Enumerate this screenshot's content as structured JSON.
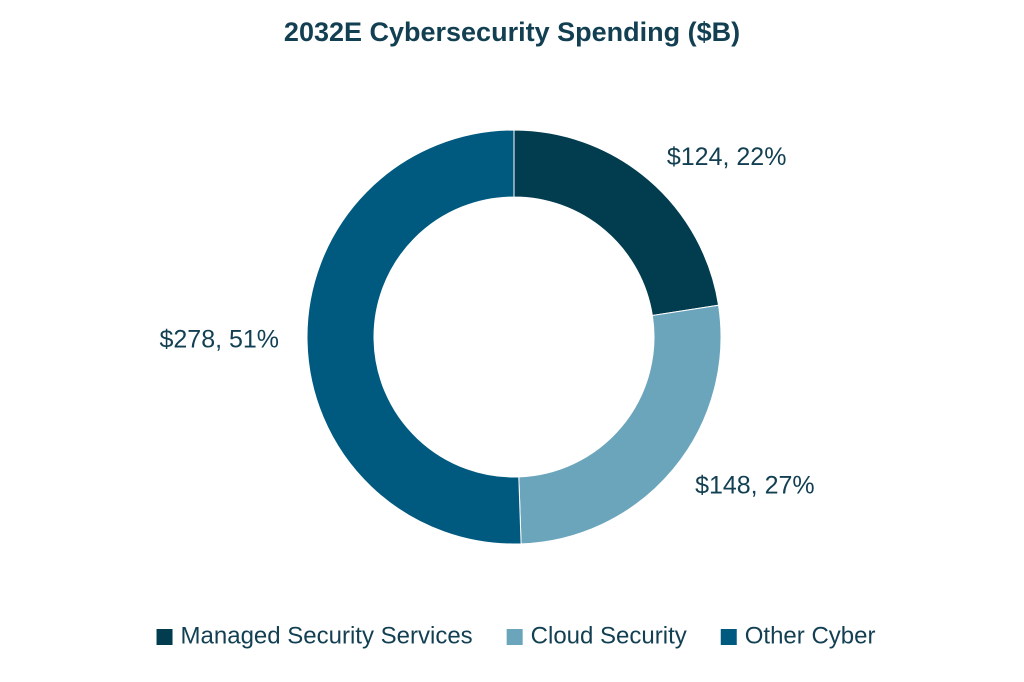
{
  "chart_data": {
    "type": "pie",
    "donut": true,
    "title": "2032E Cybersecurity Spending ($B)",
    "categories": [
      "Managed Security Services",
      "Cloud Security",
      "Other Cyber"
    ],
    "values": [
      124,
      148,
      278
    ],
    "value_labels": [
      "$124, 22%",
      "$148, 27%",
      "$278, 51%"
    ],
    "colors": [
      "#023d4f",
      "#6aa5bc",
      "#005a80"
    ],
    "legend": "bottom"
  }
}
